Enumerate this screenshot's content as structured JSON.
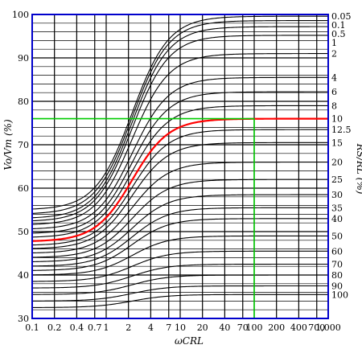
{
  "chart_data": {
    "type": "line",
    "xscale": "log",
    "xlim": [
      0.1,
      1000
    ],
    "ylim": [
      30,
      100
    ],
    "grid": true,
    "xlabel": "ωCRL",
    "ylabel": "Vo/Vm (%)",
    "y2label": "RS/RL (%)",
    "xticks": [
      {
        "v": 0.1,
        "label": "0.1"
      },
      {
        "v": 0.2,
        "label": "0.2"
      },
      {
        "v": 0.4,
        "label": "0.4"
      },
      {
        "v": 0.7,
        "label": "0.7"
      },
      {
        "v": 1,
        "label": "1"
      },
      {
        "v": 2,
        "label": "2"
      },
      {
        "v": 4,
        "label": "4"
      },
      {
        "v": 7,
        "label": "7"
      },
      {
        "v": 10,
        "label": "10"
      },
      {
        "v": 20,
        "label": "20"
      },
      {
        "v": 40,
        "label": "40"
      },
      {
        "v": 70,
        "label": "70"
      },
      {
        "v": 100,
        "label": "100"
      },
      {
        "v": 200,
        "label": "200"
      },
      {
        "v": 400,
        "label": "400"
      },
      {
        "v": 700,
        "label": "700"
      },
      {
        "v": 1000,
        "label": "1,000"
      }
    ],
    "yticks": [
      30,
      40,
      50,
      60,
      70,
      80,
      90,
      100
    ],
    "series": [
      {
        "name": "0.05",
        "low": 55.0,
        "high": 99.6
      },
      {
        "name": "0.1",
        "low": 54.0,
        "high": 98.6
      },
      {
        "name": "0.5",
        "low": 53.0,
        "high": 97.2
      },
      {
        "name": "1",
        "low": 52.3,
        "high": 95.2
      },
      {
        "name": "2",
        "low": 51.5,
        "high": 91.0
      },
      {
        "name": "4",
        "low": 50.5,
        "high": 85.5
      },
      {
        "name": "6",
        "low": 49.5,
        "high": 82.2
      },
      {
        "name": "8",
        "low": 48.6,
        "high": 79.0
      },
      {
        "name": "10",
        "low": 47.7,
        "high": 76.0
      },
      {
        "name": "12.5",
        "low": 46.8,
        "high": 73.5
      },
      {
        "name": "15",
        "low": 46.0,
        "high": 70.5
      },
      {
        "name": "20",
        "low": 45.0,
        "high": 66.0
      },
      {
        "name": "25",
        "low": 44.0,
        "high": 62.0
      },
      {
        "name": "30",
        "low": 43.0,
        "high": 58.5
      },
      {
        "name": "35",
        "low": 42.0,
        "high": 55.5
      },
      {
        "name": "40",
        "low": 41.0,
        "high": 53.0
      },
      {
        "name": "50",
        "low": 40.0,
        "high": 49.0
      },
      {
        "name": "60",
        "low": 38.5,
        "high": 45.5
      },
      {
        "name": "70",
        "low": 37.0,
        "high": 42.5
      },
      {
        "name": "80",
        "low": 35.5,
        "high": 40.0
      },
      {
        "name": "90",
        "low": 34.0,
        "high": 37.5
      },
      {
        "name": "100",
        "low": 32.5,
        "high": 35.5
      }
    ],
    "highlight_series": "10",
    "highlight_color": "#ff0000",
    "reference_lines": {
      "color": "#00cc00",
      "x": 100,
      "y": 76
    }
  },
  "colors": {
    "frame": "#0000cc",
    "grid": "#000000",
    "curve": "#000000"
  }
}
